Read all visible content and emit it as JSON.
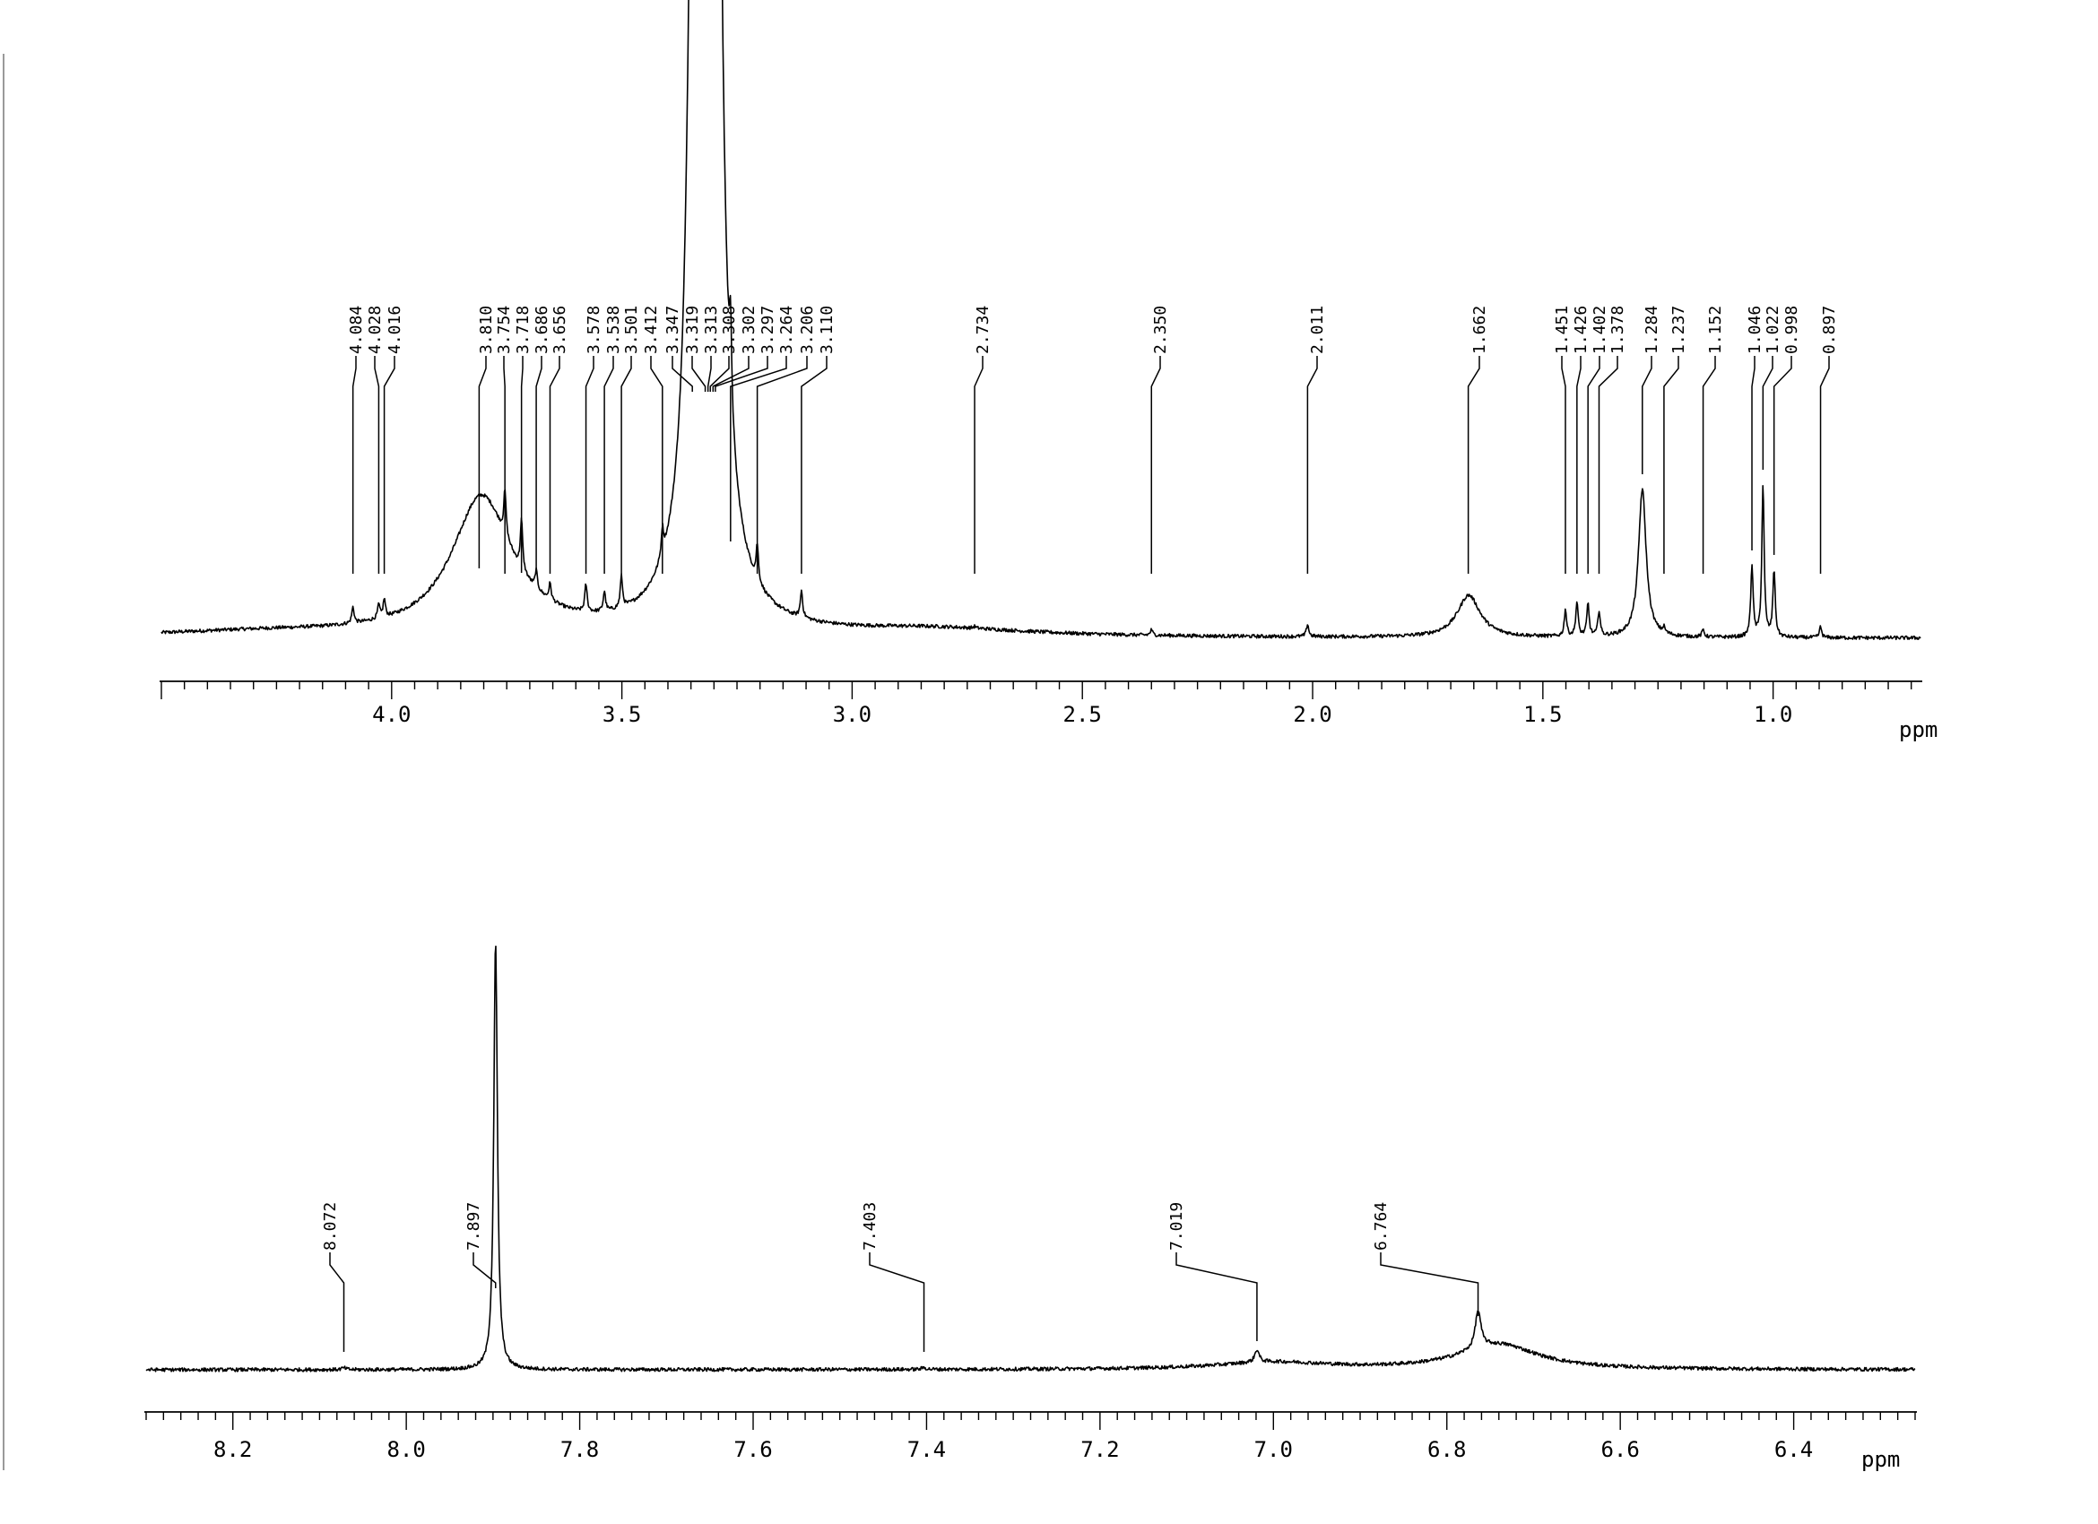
{
  "chart_data": [
    {
      "type": "line",
      "title": "",
      "xlabel": "ppm",
      "ylabel": "",
      "x_range": [
        4.5,
        0.68
      ],
      "x_reversed": true,
      "grid": false,
      "tick_labels": [
        "4.0",
        "3.5",
        "3.0",
        "2.5",
        "2.0",
        "1.5",
        "1.0"
      ],
      "tick_values": [
        4.0,
        3.5,
        3.0,
        2.5,
        2.0,
        1.5,
        1.0
      ],
      "peak_labels": [
        "4.084",
        "4.028",
        "4.016",
        "3.810",
        "3.754",
        "3.718",
        "3.686",
        "3.656",
        "3.578",
        "3.538",
        "3.501",
        "3.412",
        "3.347",
        "3.319",
        "3.313",
        "3.308",
        "3.302",
        "3.297",
        "3.264",
        "3.206",
        "3.110",
        "2.734",
        "2.350",
        "2.011",
        "1.662",
        "1.451",
        "1.426",
        "1.402",
        "1.378",
        "1.284",
        "1.237",
        "1.152",
        "1.046",
        "1.022",
        "0.998",
        "0.897"
      ],
      "peaks_ppm": [
        4.084,
        4.028,
        4.016,
        3.81,
        3.754,
        3.718,
        3.686,
        3.656,
        3.578,
        3.538,
        3.501,
        3.412,
        3.347,
        3.319,
        3.313,
        3.308,
        3.302,
        3.297,
        3.264,
        3.206,
        3.11,
        2.734,
        2.35,
        2.011,
        1.662,
        1.451,
        1.426,
        1.402,
        1.378,
        1.284,
        1.237,
        1.152,
        1.046,
        1.022,
        0.998,
        0.897
      ]
    },
    {
      "type": "line",
      "title": "",
      "xlabel": "ppm",
      "ylabel": "",
      "x_range": [
        8.3,
        6.26
      ],
      "x_reversed": true,
      "grid": false,
      "tick_labels": [
        "8.2",
        "8.0",
        "7.8",
        "7.6",
        "7.4",
        "7.2",
        "7.0",
        "6.8",
        "6.6",
        "6.4"
      ],
      "tick_values": [
        8.2,
        8.0,
        7.8,
        7.6,
        7.4,
        7.2,
        7.0,
        6.8,
        6.6,
        6.4
      ],
      "peak_labels": [
        "8.072",
        "7.897",
        "7.403",
        "7.019",
        "6.764"
      ],
      "peaks_ppm": [
        8.072,
        7.897,
        7.403,
        7.019,
        6.764
      ]
    }
  ]
}
